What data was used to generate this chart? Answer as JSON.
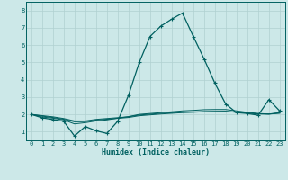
{
  "xlabel": "Humidex (Indice chaleur)",
  "background_color": "#cce8e8",
  "grid_color": "#b0d0d0",
  "line_color": "#006060",
  "spine_color": "#006060",
  "xlim": [
    -0.5,
    23.5
  ],
  "ylim": [
    0.5,
    8.5
  ],
  "xticks": [
    0,
    1,
    2,
    3,
    4,
    5,
    6,
    7,
    8,
    9,
    10,
    11,
    12,
    13,
    14,
    15,
    16,
    17,
    18,
    19,
    20,
    21,
    22,
    23
  ],
  "yticks": [
    1,
    2,
    3,
    4,
    5,
    6,
    7,
    8
  ],
  "series": [
    [
      2.0,
      1.8,
      1.7,
      1.6,
      0.75,
      1.3,
      1.05,
      0.9,
      1.6,
      3.1,
      5.0,
      6.5,
      7.1,
      7.5,
      7.85,
      6.5,
      5.2,
      3.8,
      2.6,
      2.1,
      2.05,
      1.95,
      2.85,
      2.2
    ],
    [
      2.0,
      1.85,
      1.78,
      1.68,
      1.45,
      1.52,
      1.62,
      1.68,
      1.78,
      1.87,
      2.0,
      2.05,
      2.1,
      2.15,
      2.2,
      2.23,
      2.27,
      2.28,
      2.28,
      2.2,
      2.12,
      2.05,
      2.02,
      2.1
    ],
    [
      2.0,
      1.9,
      1.82,
      1.72,
      1.57,
      1.58,
      1.67,
      1.72,
      1.77,
      1.82,
      1.92,
      1.97,
      2.02,
      2.06,
      2.1,
      2.12,
      2.15,
      2.16,
      2.16,
      2.12,
      2.07,
      2.02,
      2.01,
      2.07
    ],
    [
      2.0,
      1.93,
      1.86,
      1.76,
      1.62,
      1.62,
      1.71,
      1.76,
      1.81,
      1.86,
      1.96,
      2.01,
      2.06,
      2.09,
      2.13,
      2.14,
      2.16,
      2.17,
      2.18,
      2.12,
      2.08,
      2.04,
      2.02,
      2.07
    ]
  ]
}
